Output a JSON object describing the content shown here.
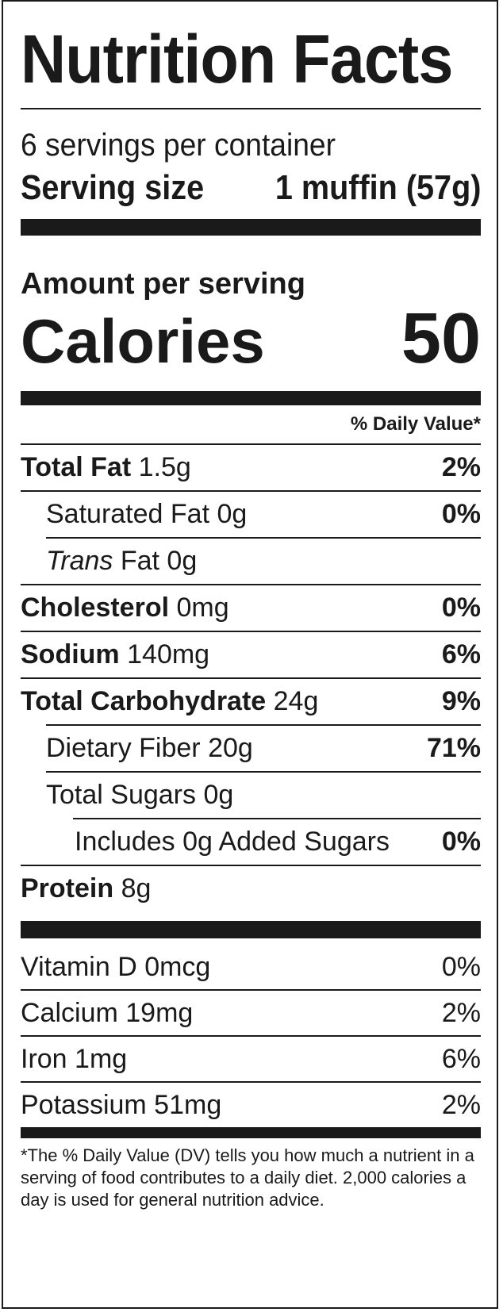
{
  "title": "Nutrition Facts",
  "servings_per_container": "6 servings per container",
  "serving_size": {
    "label": "Serving size",
    "value": "1 muffin (57g)"
  },
  "amount_per_serving": "Amount per serving",
  "calories": {
    "label": "Calories",
    "value": "50"
  },
  "daily_value_header": "% Daily Value*",
  "nutrients": [
    {
      "label": "Total Fat",
      "amount": "1.5g",
      "dv": "2%"
    },
    {
      "label": "Saturated Fat",
      "amount": "0g",
      "dv": "0%"
    },
    {
      "label_italic": "Trans",
      "label": "Fat",
      "amount": "0g",
      "dv": ""
    },
    {
      "label": "Cholesterol",
      "amount": "0mg",
      "dv": "0%"
    },
    {
      "label": "Sodium",
      "amount": "140mg",
      "dv": "6%"
    },
    {
      "label": "Total Carbohydrate",
      "amount": "24g",
      "dv": "9%"
    },
    {
      "label": "Dietary Fiber",
      "amount": "20g",
      "dv": "71%"
    },
    {
      "label": "Total Sugars",
      "amount": "0g",
      "dv": ""
    },
    {
      "text": "Includes 0g Added Sugars",
      "dv": "0%"
    },
    {
      "label": "Protein",
      "amount": "8g",
      "dv": ""
    }
  ],
  "vitamins": [
    {
      "text": "Vitamin D 0mcg",
      "dv": "0%"
    },
    {
      "text": "Calcium 19mg",
      "dv": "2%"
    },
    {
      "text": "Iron 1mg",
      "dv": "6%"
    },
    {
      "text": "Potassium 51mg",
      "dv": "2%"
    }
  ],
  "footnote": "*The % Daily Value (DV) tells you how much a nutrient in a serving of food contributes to a daily diet. 2,000 calories a day is used for general nutrition advice."
}
